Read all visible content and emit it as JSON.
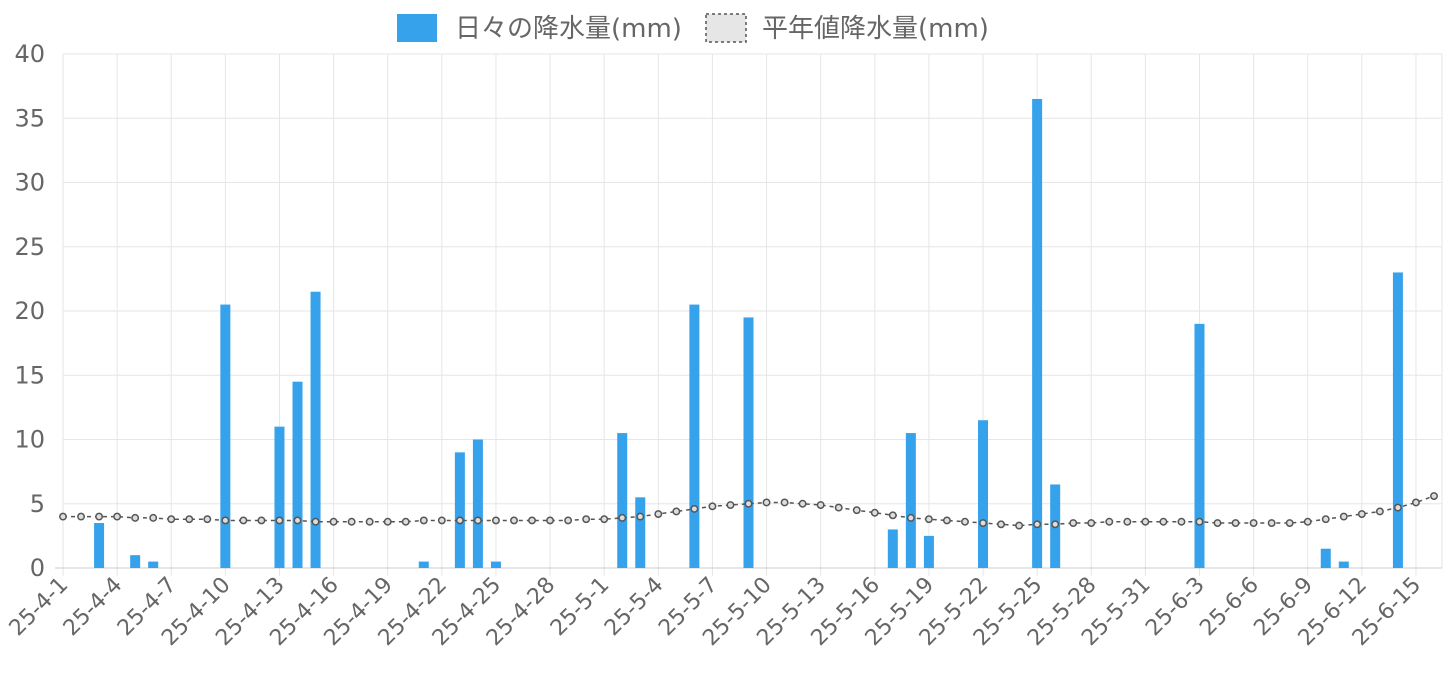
{
  "chart_data": {
    "type": "bar",
    "ylim": [
      0,
      40
    ],
    "y_ticks": [
      0,
      5,
      10,
      15,
      20,
      25,
      30,
      35,
      40
    ],
    "grid": true,
    "legend_placement": "top-center",
    "dates": [
      "25-4-1",
      "25-4-2",
      "25-4-3",
      "25-4-4",
      "25-4-5",
      "25-4-6",
      "25-4-7",
      "25-4-8",
      "25-4-9",
      "25-4-10",
      "25-4-11",
      "25-4-12",
      "25-4-13",
      "25-4-14",
      "25-4-15",
      "25-4-16",
      "25-4-17",
      "25-4-18",
      "25-4-19",
      "25-4-20",
      "25-4-21",
      "25-4-22",
      "25-4-23",
      "25-4-24",
      "25-4-25",
      "25-4-26",
      "25-4-27",
      "25-4-28",
      "25-4-29",
      "25-4-30",
      "25-5-1",
      "25-5-2",
      "25-5-3",
      "25-5-4",
      "25-5-5",
      "25-5-6",
      "25-5-7",
      "25-5-8",
      "25-5-9",
      "25-5-10",
      "25-5-11",
      "25-5-12",
      "25-5-13",
      "25-5-14",
      "25-5-15",
      "25-5-16",
      "25-5-17",
      "25-5-18",
      "25-5-19",
      "25-5-20",
      "25-5-21",
      "25-5-22",
      "25-5-23",
      "25-5-24",
      "25-5-25",
      "25-5-26",
      "25-5-27",
      "25-5-28",
      "25-5-29",
      "25-5-30",
      "25-5-31",
      "25-6-1",
      "25-6-2",
      "25-6-3",
      "25-6-4",
      "25-6-5",
      "25-6-6",
      "25-6-7",
      "25-6-8",
      "25-6-9",
      "25-6-10",
      "25-6-11",
      "25-6-12",
      "25-6-13",
      "25-6-14",
      "25-6-15",
      "25-6-16"
    ],
    "x_tick_labels": [
      "25-4-1",
      "25-4-4",
      "25-4-7",
      "25-4-10",
      "25-4-13",
      "25-4-16",
      "25-4-19",
      "25-4-22",
      "25-4-25",
      "25-4-28",
      "25-5-1",
      "25-5-4",
      "25-5-7",
      "25-5-10",
      "25-5-13",
      "25-5-16",
      "25-5-19",
      "25-5-22",
      "25-5-25",
      "25-5-28",
      "25-5-31",
      "25-6-3",
      "25-6-6",
      "25-6-9",
      "25-6-12",
      "25-6-15"
    ],
    "series": [
      {
        "name": "日々の降水量(mm)",
        "kind": "bar",
        "color": "#36a2eb",
        "values": [
          0,
          0,
          3.5,
          0,
          1,
          0.5,
          0,
          0,
          0,
          20.5,
          0,
          0,
          11,
          14.5,
          21.5,
          0,
          0,
          0,
          0,
          0,
          0.5,
          0,
          9,
          10,
          0.5,
          0,
          0,
          0,
          0,
          0,
          0,
          10.5,
          5.5,
          0,
          0,
          20.5,
          0,
          0,
          19.5,
          0,
          0,
          0,
          0,
          0,
          0,
          0,
          3,
          10.5,
          2.5,
          0,
          0,
          11.5,
          0,
          0,
          36.5,
          6.5,
          0,
          0,
          0,
          0,
          0,
          0,
          0,
          19,
          0,
          0,
          0,
          0,
          0,
          0,
          1.5,
          0.5,
          0,
          0,
          23,
          0,
          0
        ]
      },
      {
        "name": "平年値降水量(mm)",
        "kind": "line",
        "line_style": "dashed",
        "color": "#555555",
        "legend_fill": "#e6e6e6",
        "values": [
          4.0,
          4.0,
          4.0,
          4.0,
          3.9,
          3.9,
          3.8,
          3.8,
          3.8,
          3.7,
          3.7,
          3.7,
          3.7,
          3.7,
          3.6,
          3.6,
          3.6,
          3.6,
          3.6,
          3.6,
          3.7,
          3.7,
          3.7,
          3.7,
          3.7,
          3.7,
          3.7,
          3.7,
          3.7,
          3.8,
          3.8,
          3.9,
          4.0,
          4.2,
          4.4,
          4.6,
          4.8,
          4.9,
          5.0,
          5.1,
          5.1,
          5.0,
          4.9,
          4.7,
          4.5,
          4.3,
          4.1,
          3.9,
          3.8,
          3.7,
          3.6,
          3.5,
          3.4,
          3.3,
          3.4,
          3.4,
          3.5,
          3.5,
          3.6,
          3.6,
          3.6,
          3.6,
          3.6,
          3.6,
          3.5,
          3.5,
          3.5,
          3.5,
          3.5,
          3.6,
          3.8,
          4.0,
          4.2,
          4.4,
          4.7,
          5.1,
          5.6
        ]
      }
    ]
  }
}
